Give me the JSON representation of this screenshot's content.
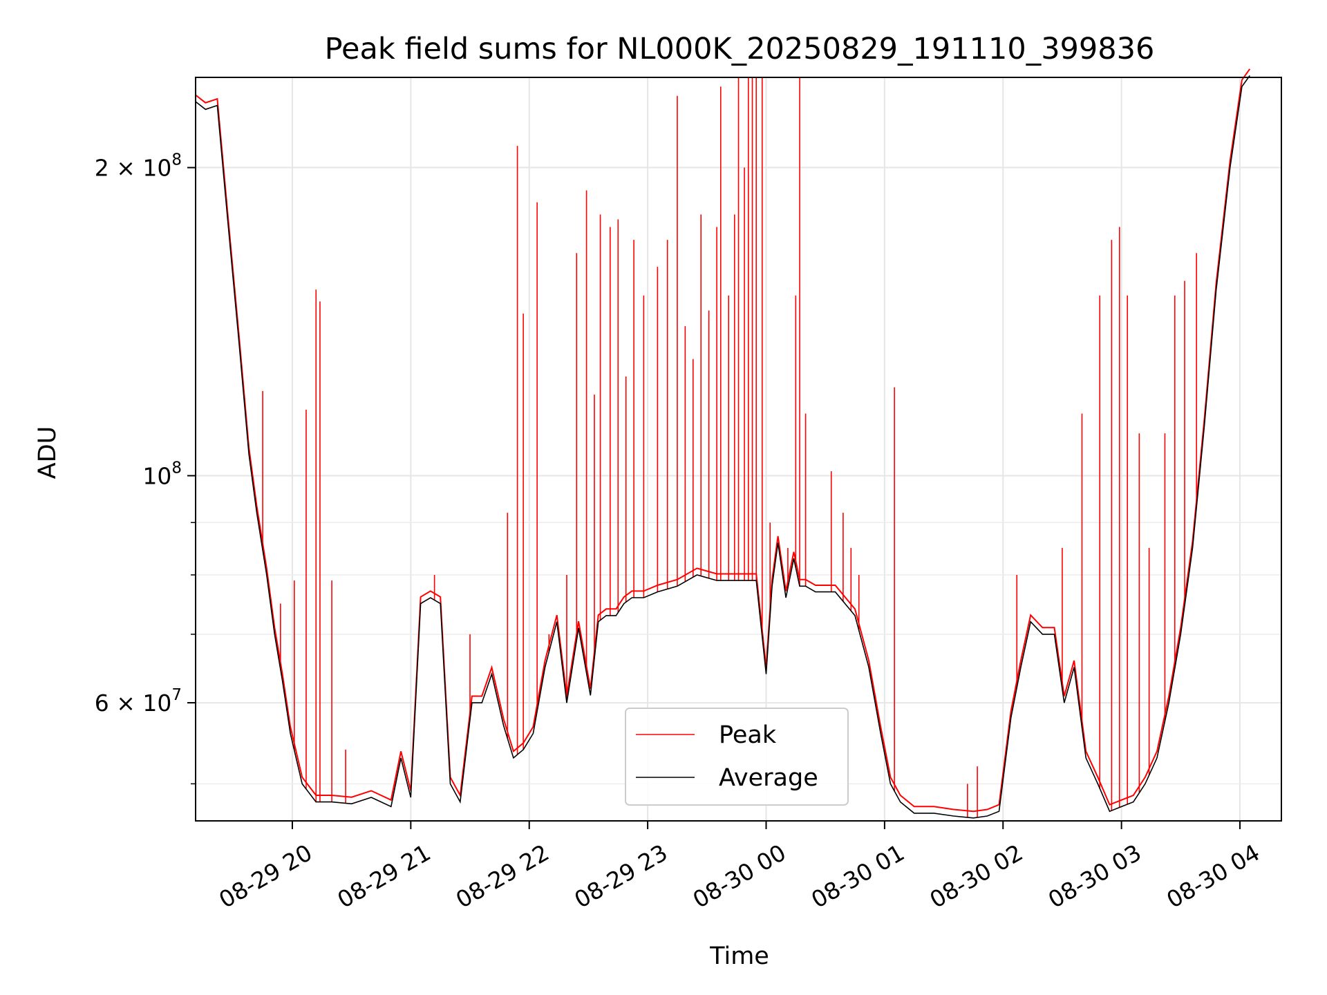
{
  "chart_data": {
    "type": "line",
    "title": "Peak field sums for NL000K_20250829_191110_399836",
    "xlabel": "Time",
    "ylabel": "ADU",
    "yscale": "log",
    "ylim": [
      46000000,
      245000000
    ],
    "xlim": [
      "2025-08-29 19:11",
      "2025-08-30 04:21"
    ],
    "grid": true,
    "legend": {
      "position": "lower center",
      "entries": [
        "Peak",
        "Average"
      ]
    },
    "x_ticks": [
      "08-29 20",
      "08-29 21",
      "08-29 22",
      "08-29 23",
      "08-30 00",
      "08-30 01",
      "08-30 02",
      "08-30 03",
      "08-30 04"
    ],
    "y_ticks": [
      {
        "value": 200000000,
        "base": "2 × 10",
        "exp": "8"
      },
      {
        "value": 100000000,
        "base": "10",
        "exp": "8"
      },
      {
        "value": 60000000,
        "base": "6 × 10",
        "exp": "7"
      }
    ],
    "y_minor_ticks": [
      50000000,
      70000000,
      80000000,
      90000000
    ],
    "colors": {
      "Peak": "#ff0000",
      "Average": "#000000"
    },
    "series": [
      {
        "name": "Average",
        "x": [
          "2025-08-29 19:11",
          "2025-08-29 19:16",
          "2025-08-29 19:22",
          "2025-08-29 19:27",
          "2025-08-29 19:33",
          "2025-08-29 19:38",
          "2025-08-29 19:42",
          "2025-08-29 19:47",
          "2025-08-29 19:51",
          "2025-08-29 19:55",
          "2025-08-29 19:59",
          "2025-08-29 20:05",
          "2025-08-29 20:12",
          "2025-08-29 20:20",
          "2025-08-29 20:30",
          "2025-08-29 20:40",
          "2025-08-29 20:50",
          "2025-08-29 20:55",
          "2025-08-29 21:00",
          "2025-08-29 21:05",
          "2025-08-29 21:10",
          "2025-08-29 21:15",
          "2025-08-29 21:20",
          "2025-08-29 21:25",
          "2025-08-29 21:31",
          "2025-08-29 21:36",
          "2025-08-29 21:41",
          "2025-08-29 21:47",
          "2025-08-29 21:52",
          "2025-08-29 21:57",
          "2025-08-29 22:02",
          "2025-08-29 22:08",
          "2025-08-29 22:14",
          "2025-08-29 22:19",
          "2025-08-29 22:25",
          "2025-08-29 22:31",
          "2025-08-29 22:35",
          "2025-08-29 22:39",
          "2025-08-29 22:44",
          "2025-08-29 22:48",
          "2025-08-29 22:52",
          "2025-08-29 22:58",
          "2025-08-29 23:05",
          "2025-08-29 23:15",
          "2025-08-29 23:25",
          "2025-08-29 23:35",
          "2025-08-29 23:45",
          "2025-08-29 23:55",
          "2025-08-30 00:00",
          "2025-08-30 00:03",
          "2025-08-30 00:06",
          "2025-08-30 00:10",
          "2025-08-30 00:14",
          "2025-08-30 00:17",
          "2025-08-30 00:20",
          "2025-08-30 00:25",
          "2025-08-30 00:35",
          "2025-08-30 00:45",
          "2025-08-30 00:52",
          "2025-08-30 00:58",
          "2025-08-30 01:03",
          "2025-08-30 01:08",
          "2025-08-30 01:15",
          "2025-08-30 01:25",
          "2025-08-30 01:35",
          "2025-08-30 01:45",
          "2025-08-30 01:52",
          "2025-08-30 01:58",
          "2025-08-30 02:04",
          "2025-08-30 02:09",
          "2025-08-30 02:14",
          "2025-08-30 02:20",
          "2025-08-30 02:26",
          "2025-08-30 02:31",
          "2025-08-30 02:36",
          "2025-08-30 02:42",
          "2025-08-30 02:48",
          "2025-08-30 02:54",
          "2025-08-30 03:00",
          "2025-08-30 03:06",
          "2025-08-30 03:12",
          "2025-08-30 03:18",
          "2025-08-30 03:24",
          "2025-08-30 03:30",
          "2025-08-30 03:36",
          "2025-08-30 03:42",
          "2025-08-30 03:48",
          "2025-08-30 03:55",
          "2025-08-30 04:01",
          "2025-08-30 04:05"
        ],
        "values": [
          232000000,
          228000000,
          230000000,
          180000000,
          135000000,
          105000000,
          92000000,
          80000000,
          70000000,
          63000000,
          56000000,
          50000000,
          48000000,
          48000000,
          47800000,
          48500000,
          47500000,
          53000000,
          48500000,
          75000000,
          76000000,
          75000000,
          50000000,
          48000000,
          60000000,
          60000000,
          64000000,
          57000000,
          53000000,
          54000000,
          56000000,
          65000000,
          72000000,
          60000000,
          71000000,
          61000000,
          72000000,
          73000000,
          73000000,
          75000000,
          76000000,
          76000000,
          77000000,
          78000000,
          80000000,
          79000000,
          79000000,
          79000000,
          64000000,
          78000000,
          86000000,
          76000000,
          83000000,
          78000000,
          78000000,
          77000000,
          77000000,
          73000000,
          65000000,
          56000000,
          50000000,
          48000000,
          46800000,
          46800000,
          46500000,
          46300000,
          46500000,
          47000000,
          58000000,
          65000000,
          72000000,
          70000000,
          70000000,
          60000000,
          65000000,
          53000000,
          50000000,
          47000000,
          47500000,
          48000000,
          50000000,
          53000000,
          60000000,
          70000000,
          85000000,
          112000000,
          152000000,
          200000000,
          240000000,
          246000000
        ]
      },
      {
        "name": "Peak",
        "spikes": [
          [
            "2025-08-29 19:45",
            121000000
          ],
          [
            "2025-08-29 19:54",
            75000000
          ],
          [
            "2025-08-29 20:01",
            79000000
          ],
          [
            "2025-08-29 20:07",
            116000000
          ],
          [
            "2025-08-29 20:12",
            152000000
          ],
          [
            "2025-08-29 20:14",
            148000000
          ],
          [
            "2025-08-29 20:20",
            79000000
          ],
          [
            "2025-08-29 20:27",
            54000000
          ],
          [
            "2025-08-29 21:12",
            80000000
          ],
          [
            "2025-08-29 21:30",
            70000000
          ],
          [
            "2025-08-29 21:49",
            92000000
          ],
          [
            "2025-08-29 21:54",
            210000000
          ],
          [
            "2025-08-29 21:57",
            144000000
          ],
          [
            "2025-08-29 22:04",
            185000000
          ],
          [
            "2025-08-29 22:10",
            70000000
          ],
          [
            "2025-08-29 22:19",
            80000000
          ],
          [
            "2025-08-29 22:24",
            165000000
          ],
          [
            "2025-08-29 22:29",
            190000000
          ],
          [
            "2025-08-29 22:33",
            120000000
          ],
          [
            "2025-08-29 22:36",
            180000000
          ],
          [
            "2025-08-29 22:41",
            175000000
          ],
          [
            "2025-08-29 22:45",
            178000000
          ],
          [
            "2025-08-29 22:49",
            125000000
          ],
          [
            "2025-08-29 22:53",
            170000000
          ],
          [
            "2025-08-29 22:58",
            150000000
          ],
          [
            "2025-08-29 23:05",
            160000000
          ],
          [
            "2025-08-29 23:10",
            170000000
          ],
          [
            "2025-08-29 23:15",
            235000000
          ],
          [
            "2025-08-29 23:19",
            140000000
          ],
          [
            "2025-08-29 23:23",
            130000000
          ],
          [
            "2025-08-29 23:27",
            180000000
          ],
          [
            "2025-08-29 23:31",
            145000000
          ],
          [
            "2025-08-29 23:35",
            175000000
          ],
          [
            "2025-08-29 23:37",
            240000000
          ],
          [
            "2025-08-29 23:41",
            150000000
          ],
          [
            "2025-08-29 23:44",
            180000000
          ],
          [
            "2025-08-29 23:46",
            245000000
          ],
          [
            "2025-08-29 23:49",
            200000000
          ],
          [
            "2025-08-29 23:51",
            245000000
          ],
          [
            "2025-08-29 23:53",
            245000000
          ],
          [
            "2025-08-29 23:55",
            245000000
          ],
          [
            "2025-08-29 23:58",
            245000000
          ],
          [
            "2025-08-30 00:02",
            90000000
          ],
          [
            "2025-08-30 00:11",
            85000000
          ],
          [
            "2025-08-30 00:15",
            150000000
          ],
          [
            "2025-08-30 00:17",
            245000000
          ],
          [
            "2025-08-30 00:20",
            115000000
          ],
          [
            "2025-08-30 00:33",
            101000000
          ],
          [
            "2025-08-30 00:39",
            92000000
          ],
          [
            "2025-08-30 00:43",
            85000000
          ],
          [
            "2025-08-30 00:47",
            80000000
          ],
          [
            "2025-08-30 01:05",
            122000000
          ],
          [
            "2025-08-30 01:42",
            50000000
          ],
          [
            "2025-08-30 01:47",
            52000000
          ],
          [
            "2025-08-30 02:07",
            80000000
          ],
          [
            "2025-08-30 02:30",
            85000000
          ],
          [
            "2025-08-30 02:40",
            115000000
          ],
          [
            "2025-08-30 02:49",
            150000000
          ],
          [
            "2025-08-30 02:55",
            170000000
          ],
          [
            "2025-08-30 02:59",
            175000000
          ],
          [
            "2025-08-30 03:03",
            150000000
          ],
          [
            "2025-08-30 03:09",
            110000000
          ],
          [
            "2025-08-30 03:14",
            85000000
          ],
          [
            "2025-08-30 03:22",
            110000000
          ],
          [
            "2025-08-30 03:27",
            150000000
          ],
          [
            "2025-08-30 03:32",
            155000000
          ],
          [
            "2025-08-30 03:38",
            165000000
          ]
        ]
      }
    ]
  }
}
